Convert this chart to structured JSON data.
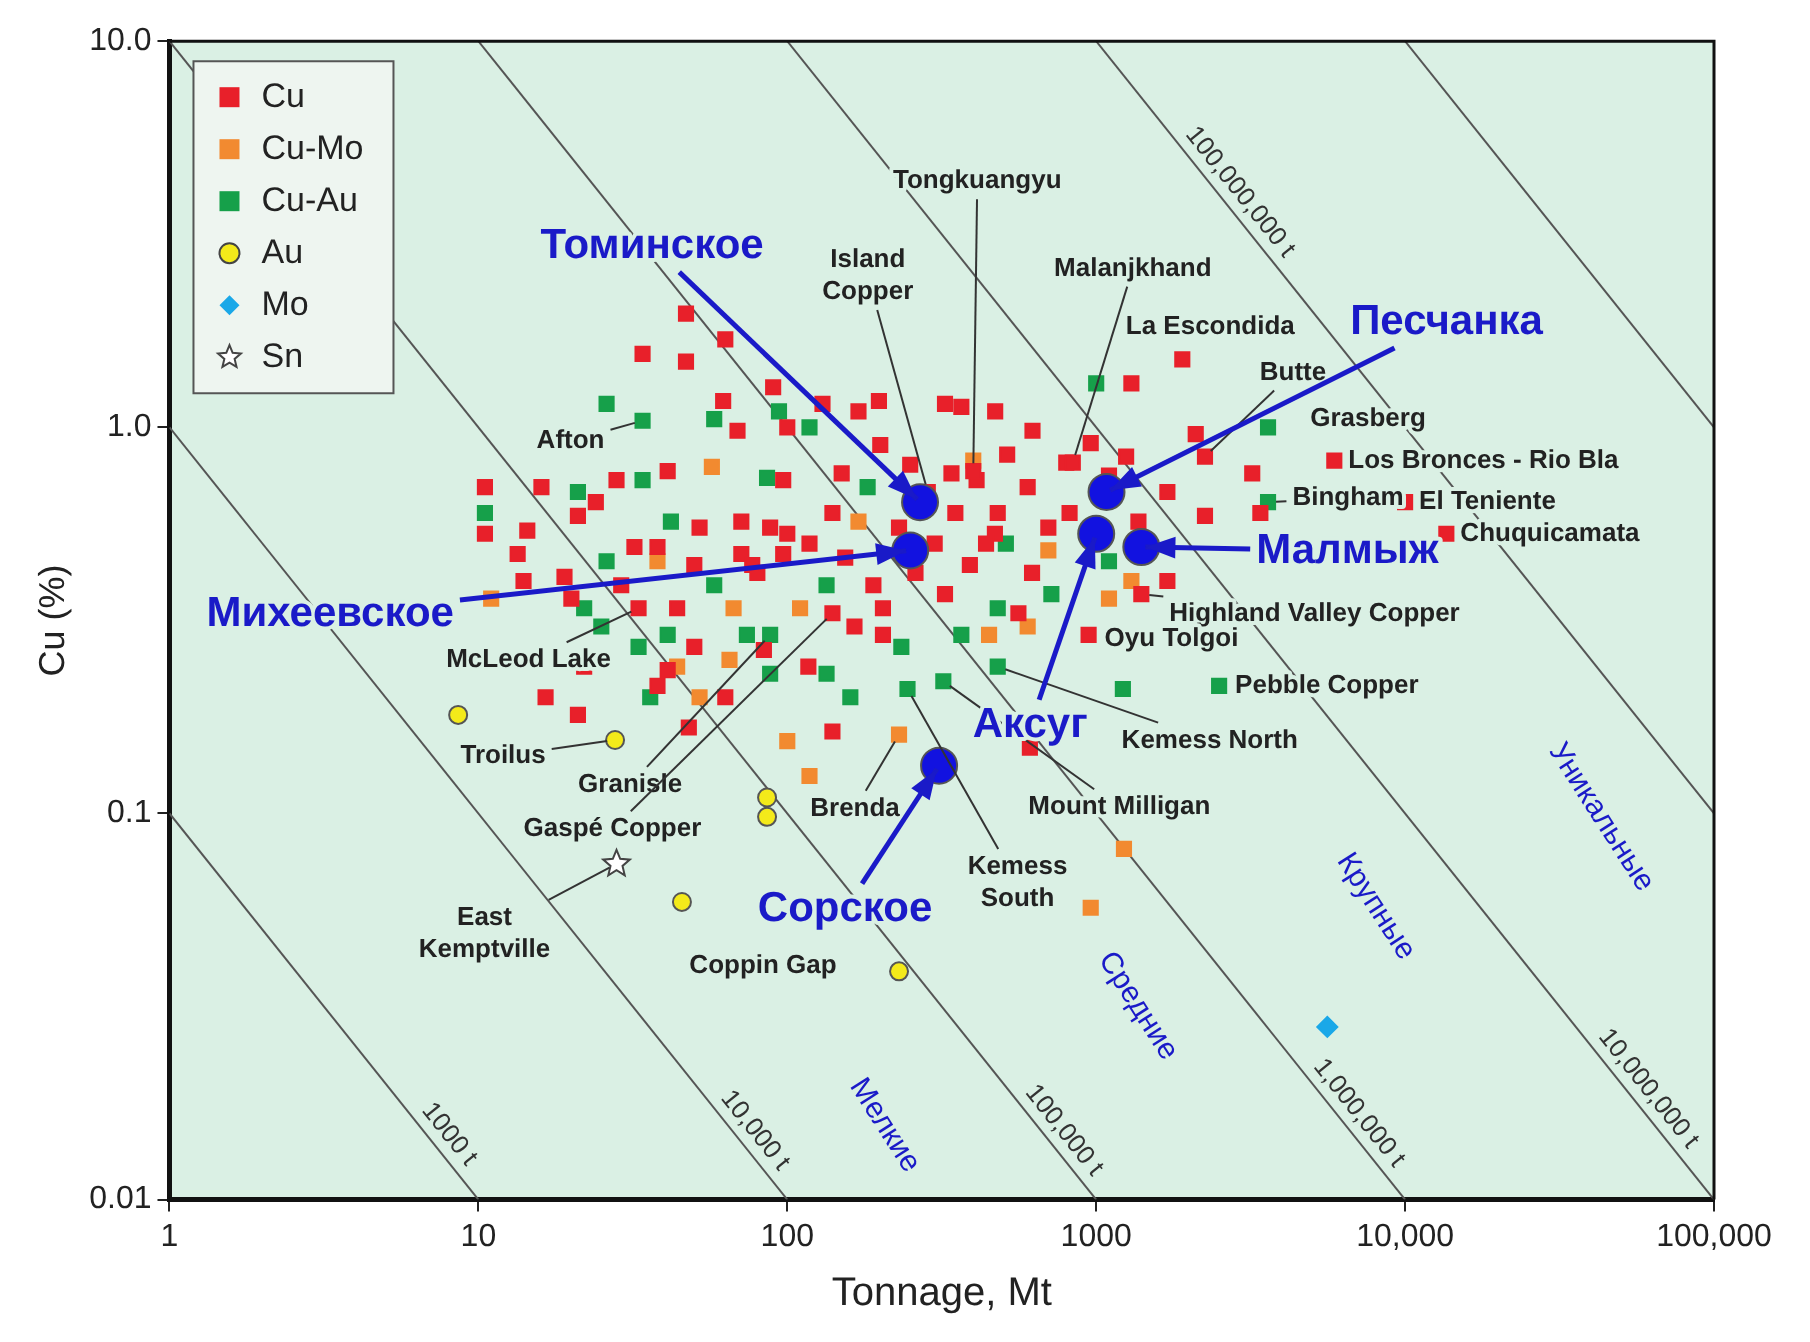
{
  "chart_data": {
    "type": "scatter",
    "xlabel": "Tonnage, Mt",
    "ylabel": "Cu (%)",
    "log": "xy",
    "grid": false,
    "legend": "top left",
    "xlim": [
      1,
      100000
    ],
    "ylim": [
      0.01,
      10
    ],
    "xticks": [
      1,
      10,
      100,
      1000,
      {
        "value": 10000,
        "label": "10,000"
      },
      {
        "value": 100000,
        "label": "100,000"
      }
    ],
    "yticks": [
      0.01,
      0.1,
      {
        "value": 1,
        "label": "1.0"
      },
      {
        "value": 10,
        "label": "10.0"
      }
    ],
    "series": [
      {
        "name": "Cu",
        "type": "scatter",
        "marker": "square",
        "color": "#e8202a",
        "x": [
          47,
          63,
          34,
          47,
          90,
          62,
          69,
          100,
          130,
          170,
          198,
          16,
          24,
          28,
          41,
          97,
          150,
          10.5,
          10.5,
          14.4,
          21,
          52,
          71,
          88,
          100,
          140,
          13.4,
          32,
          38,
          50,
          71,
          97,
          80,
          14,
          20,
          324,
          366,
          471,
          622,
          960,
          1250,
          2100,
          2250,
          1300,
          1900,
          3200,
          3400,
          515,
          800,
          340,
          410,
          600,
          480,
          820,
          1370,
          1700,
          2250,
          470,
          620,
          390,
          324,
          1700,
          204,
          5900,
          10000,
          13600,
          945,
          1400,
          610,
          140,
          48,
          16.5,
          21,
          118,
          154,
          190,
          165,
          204,
          77,
          44,
          50,
          117,
          33,
          29,
          19,
          22,
          38,
          41,
          63,
          84,
          140,
          400,
          840,
          285,
          230,
          260,
          300,
          350,
          250,
          200,
          440,
          700,
          1100,
          560
        ],
        "values": [
          1.97,
          1.69,
          1.55,
          1.48,
          1.27,
          1.17,
          0.98,
          1.0,
          1.15,
          1.1,
          1.17,
          0.7,
          0.64,
          0.73,
          0.77,
          0.73,
          0.76,
          0.7,
          0.53,
          0.54,
          0.59,
          0.55,
          0.57,
          0.55,
          0.53,
          0.6,
          0.47,
          0.49,
          0.49,
          0.44,
          0.47,
          0.47,
          0.42,
          0.4,
          0.36,
          1.15,
          1.13,
          1.1,
          0.98,
          0.91,
          0.84,
          0.96,
          0.84,
          1.3,
          1.5,
          0.76,
          0.6,
          0.85,
          0.81,
          0.76,
          0.73,
          0.7,
          0.6,
          0.6,
          0.57,
          0.68,
          0.59,
          0.53,
          0.42,
          0.44,
          0.37,
          0.4,
          0.29,
          0.82,
          0.64,
          0.53,
          0.29,
          0.37,
          0.148,
          0.163,
          0.167,
          0.2,
          0.18,
          0.5,
          0.46,
          0.39,
          0.305,
          0.34,
          0.44,
          0.34,
          0.27,
          0.24,
          0.34,
          0.39,
          0.41,
          0.24,
          0.214,
          0.235,
          0.2,
          0.265,
          0.33,
          0.77,
          0.81,
          0.68,
          0.55,
          0.42,
          0.5,
          0.6,
          0.8,
          0.9,
          0.5,
          0.55,
          0.75,
          0.33
        ]
      },
      {
        "name": "Cu-Mo",
        "type": "scatter",
        "marker": "square",
        "color": "#f28a30",
        "x": [
          57,
          38,
          11,
          700,
          1300,
          450,
          600,
          110,
          67,
          44,
          52,
          65,
          230,
          100,
          118,
          1230,
          960,
          400,
          170,
          1100
        ],
        "values": [
          0.79,
          0.45,
          0.36,
          0.48,
          0.4,
          0.29,
          0.305,
          0.34,
          0.34,
          0.24,
          0.2,
          0.25,
          0.16,
          0.154,
          0.125,
          0.081,
          0.057,
          0.82,
          0.57,
          0.36
        ]
      },
      {
        "name": "Cu-Au",
        "type": "scatter",
        "marker": "square",
        "color": "#16a04a",
        "x": [
          26,
          34,
          58,
          94,
          118,
          21,
          34,
          86,
          182,
          10.5,
          42,
          26,
          22,
          510,
          716,
          480,
          1100,
          366,
          134,
          88,
          234,
          58,
          41,
          88,
          25,
          33,
          36,
          74,
          134,
          160,
          245,
          320,
          1220,
          2500,
          3600,
          3600,
          1000,
          480
        ],
        "values": [
          1.15,
          1.04,
          1.05,
          1.1,
          1.0,
          0.68,
          0.73,
          0.74,
          0.7,
          0.6,
          0.57,
          0.45,
          0.34,
          0.5,
          0.37,
          0.34,
          0.45,
          0.29,
          0.39,
          0.29,
          0.27,
          0.39,
          0.29,
          0.23,
          0.305,
          0.27,
          0.2,
          0.29,
          0.23,
          0.2,
          0.21,
          0.22,
          0.21,
          0.214,
          0.64,
          1.0,
          1.3,
          0.24
        ]
      },
      {
        "name": "Au",
        "type": "scatter",
        "marker": "circle",
        "color": "#f4ea1a",
        "x": [
          8.6,
          27.7,
          86,
          86,
          45.6,
          230
        ],
        "values": [
          0.18,
          0.155,
          0.11,
          0.098,
          0.059,
          0.039
        ]
      },
      {
        "name": "Mo",
        "type": "scatter",
        "marker": "diamond",
        "color": "#1aa8e8",
        "x": [
          5600
        ],
        "values": [
          0.028
        ]
      },
      {
        "name": "Sn",
        "type": "scatter",
        "marker": "star",
        "color": "#444444",
        "x": [
          28
        ],
        "values": [
          0.074
        ]
      },
      {
        "type": "scatter",
        "marker": "circle",
        "color": "#1212e0",
        "x": [
          269,
          250,
          1080,
          1000,
          1400,
          310
        ],
        "values": [
          0.64,
          0.48,
          0.68,
          0.53,
          0.49,
          0.133
        ]
      },
      {
        "name": "1000 t",
        "type": "line",
        "marker": "none",
        "color": "#555555",
        "x": [
          1,
          10
        ],
        "values": [
          0.1,
          0.01
        ]
      },
      {
        "name": "10,000 t",
        "type": "line",
        "marker": "none",
        "color": "#555555",
        "x": [
          1,
          100
        ],
        "values": [
          1,
          0.01
        ]
      },
      {
        "name": "100,000 t",
        "type": "line",
        "marker": "none",
        "color": "#555555",
        "x": [
          1,
          1000
        ],
        "values": [
          10,
          0.01
        ]
      },
      {
        "name": "1,000,000 t",
        "type": "line",
        "marker": "none",
        "color": "#555555",
        "x": [
          10,
          10000
        ],
        "values": [
          10,
          0.01
        ]
      },
      {
        "name": "10,000,000 t",
        "type": "line",
        "marker": "none",
        "color": "#555555",
        "x": [
          100,
          100000
        ],
        "values": [
          10,
          0.01
        ]
      },
      {
        "name": "100,000,000 t",
        "type": "line",
        "marker": "none",
        "color": "#555555",
        "x": [
          1000,
          100000
        ],
        "values": [
          10,
          0.1
        ]
      },
      {
        "type": "line",
        "marker": "none",
        "color": "#555555",
        "x": [
          10000,
          100000
        ],
        "values": [
          10,
          1
        ]
      }
    ],
    "annotations": [
      {
        "text": "Afton",
        "x": 34,
        "y": 1.04
      },
      {
        "text": "Island\nCopper",
        "x": 285,
        "y": 0.68
      },
      {
        "text": "Tongkuangyu",
        "x": 400,
        "y": 0.77
      },
      {
        "text": "Malanjkhand",
        "x": 840,
        "y": 0.81
      },
      {
        "text": "La Escondida",
        "x": 1900,
        "y": 1.5
      },
      {
        "text": "Butte",
        "x": 2250,
        "y": 0.84
      },
      {
        "text": "Grasberg",
        "x": 3600,
        "y": 1.0
      },
      {
        "text": "Los Bronces - Rio Bla",
        "x": 5900,
        "y": 0.82
      },
      {
        "text": "El Teniente",
        "x": 10000,
        "y": 0.64
      },
      {
        "text": "Chuquicamata",
        "x": 13600,
        "y": 0.53
      },
      {
        "text": "Bingham",
        "x": 3600,
        "y": 0.64
      },
      {
        "text": "Highland Valley Copper",
        "x": 1400,
        "y": 0.37
      },
      {
        "text": "Oyu Tolgoi",
        "x": 945,
        "y": 0.29
      },
      {
        "text": "Pebble Copper",
        "x": 2500,
        "y": 0.214
      },
      {
        "text": "Kemess North",
        "x": 480,
        "y": 0.24
      },
      {
        "text": "Mount Milligan",
        "x": 320,
        "y": 0.22
      },
      {
        "text": "Brenda",
        "x": 230,
        "y": 0.16
      },
      {
        "text": "Kemess\nSouth",
        "x": 245,
        "y": 0.21
      },
      {
        "text": "McLeod Lake",
        "x": 33,
        "y": 0.34
      },
      {
        "text": "Troilus",
        "x": 27.7,
        "y": 0.155
      },
      {
        "text": "Granisle",
        "x": 88,
        "y": 0.29
      },
      {
        "text": "Gaspé Copper",
        "x": 140,
        "y": 0.33
      },
      {
        "text": "East\nKemptville",
        "x": 28,
        "y": 0.074
      },
      {
        "text": "Coppin Gap",
        "x": 230,
        "y": 0.039
      },
      {
        "text": "Томинское",
        "x": 269,
        "y": 0.64
      },
      {
        "text": "Михеевское",
        "x": 250,
        "y": 0.48
      },
      {
        "text": "Песчанка",
        "x": 1080,
        "y": 0.68
      },
      {
        "text": "Аксуг",
        "x": 1000,
        "y": 0.53
      },
      {
        "text": "Малмыж",
        "x": 1400,
        "y": 0.49
      },
      {
        "text": "Сорское",
        "x": 310,
        "y": 0.133
      },
      "Мелкие",
      "Средние",
      "Крупные",
      "Уникальные"
    ]
  }
}
